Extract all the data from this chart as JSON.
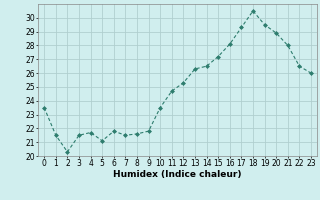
{
  "x": [
    0,
    1,
    2,
    3,
    4,
    5,
    6,
    7,
    8,
    9,
    10,
    11,
    12,
    13,
    14,
    15,
    16,
    17,
    18,
    19,
    20,
    21,
    22,
    23
  ],
  "y": [
    23.5,
    21.5,
    20.3,
    21.5,
    21.7,
    21.1,
    21.8,
    21.5,
    21.6,
    21.8,
    23.5,
    24.7,
    25.3,
    26.3,
    26.5,
    27.2,
    28.1,
    29.3,
    30.5,
    29.5,
    28.9,
    28.0,
    26.5,
    26.0
  ],
  "line_color": "#2e7d6e",
  "marker": "D",
  "marker_size": 2,
  "bg_color": "#d0eeee",
  "grid_color": "#b0cfcf",
  "xlabel": "Humidex (Indice chaleur)",
  "xlim": [
    -0.5,
    23.5
  ],
  "ylim": [
    20,
    31
  ],
  "yticks": [
    20,
    21,
    22,
    23,
    24,
    25,
    26,
    27,
    28,
    29,
    30
  ],
  "xticks": [
    0,
    1,
    2,
    3,
    4,
    5,
    6,
    7,
    8,
    9,
    10,
    11,
    12,
    13,
    14,
    15,
    16,
    17,
    18,
    19,
    20,
    21,
    22,
    23
  ],
  "tick_fontsize": 5.5,
  "xlabel_fontsize": 6.5
}
